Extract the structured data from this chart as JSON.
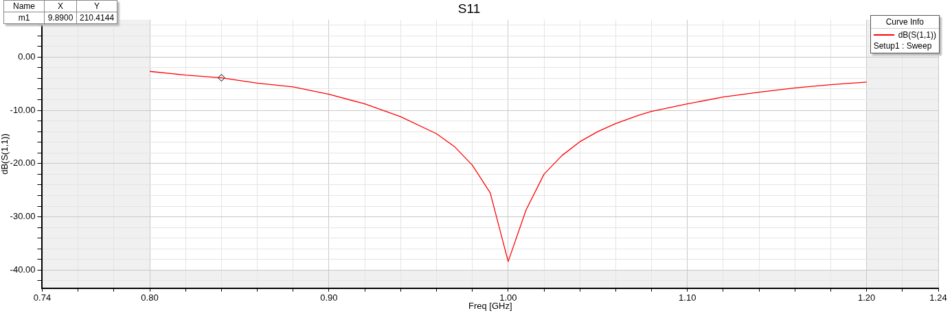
{
  "chart_data": {
    "type": "line",
    "title": "S11",
    "xlabel": "Freq [GHz]",
    "ylabel": "dB(S(1,1))",
    "legend_title": "Curve Info",
    "legend": "top right",
    "grid": true,
    "annotations": [
      "Name",
      "X",
      "Y",
      "m1",
      "9.8900",
      "210.4144",
      "Setup1 : Sweep"
    ],
    "xlim": [
      0.74,
      1.24
    ],
    "xticks": [
      0.74,
      {
        "value": 0.76,
        "label": null
      },
      {
        "value": 0.78,
        "label": null
      },
      {
        "value": 0.8,
        "label": "0.80"
      },
      {
        "value": 0.82,
        "label": null
      },
      {
        "value": 0.84,
        "label": null
      },
      {
        "value": 0.86,
        "label": null
      },
      {
        "value": 0.88,
        "label": null
      },
      {
        "value": 0.9,
        "label": "0.90"
      },
      {
        "value": 0.92,
        "label": null
      },
      {
        "value": 0.94,
        "label": null
      },
      {
        "value": 0.96,
        "label": null
      },
      {
        "value": 0.98,
        "label": null
      },
      {
        "value": 1.0,
        "label": "1.00"
      },
      {
        "value": 1.02,
        "label": null
      },
      {
        "value": 1.04,
        "label": null
      },
      {
        "value": 1.06,
        "label": null
      },
      {
        "value": 1.08,
        "label": null
      },
      {
        "value": 1.1,
        "label": "1.10"
      },
      {
        "value": 1.12,
        "label": null
      },
      {
        "value": 1.14,
        "label": null
      },
      {
        "value": 1.16,
        "label": null
      },
      {
        "value": 1.18,
        "label": null
      },
      {
        "value": 1.2,
        "label": "1.20"
      },
      {
        "value": 1.22,
        "label": null
      },
      1.24
    ],
    "ylim": [
      -43.4,
      7
    ],
    "yticks": [
      {
        "value": -42,
        "label": null
      },
      {
        "value": -40,
        "label": "-40.00"
      },
      {
        "value": -38,
        "label": null
      },
      {
        "value": -36,
        "label": null
      },
      {
        "value": -34,
        "label": null
      },
      {
        "value": -32,
        "label": null
      },
      {
        "value": -30,
        "label": "-30.00"
      },
      {
        "value": -28,
        "label": null
      },
      {
        "value": -26,
        "label": null
      },
      {
        "value": -24,
        "label": null
      },
      {
        "value": -22,
        "label": null
      },
      {
        "value": -20,
        "label": "-20.00"
      },
      {
        "value": -18,
        "label": null
      },
      {
        "value": -16,
        "label": null
      },
      {
        "value": -14,
        "label": null
      },
      {
        "value": -12,
        "label": null
      },
      {
        "value": -10,
        "label": "-10.00"
      },
      {
        "value": -8,
        "label": null
      },
      {
        "value": -6,
        "label": null
      },
      {
        "value": -4,
        "label": null
      },
      {
        "value": -2,
        "label": null
      },
      {
        "value": 0,
        "label": "0.00"
      },
      {
        "value": 2,
        "label": null
      },
      {
        "value": 4,
        "label": null
      },
      {
        "value": 6,
        "label": null
      }
    ],
    "bands": [
      {
        "axis": "x",
        "from": 0.74,
        "to": 0.8,
        "color": "#f0f0f0"
      },
      {
        "axis": "x",
        "from": 1.2,
        "to": 1.24,
        "color": "#f0f0f0"
      },
      {
        "axis": "y",
        "from": -43.4,
        "to": -40,
        "color": "#f0f0f0"
      }
    ],
    "series": [
      {
        "name": "dB(S(1,1))",
        "color": "#ff0000",
        "marker": "none",
        "x": [
          0.8,
          0.82,
          0.84,
          0.86,
          0.88,
          0.9,
          0.92,
          0.94,
          0.96,
          0.97,
          0.98,
          0.99,
          1.0,
          1.01,
          1.02,
          1.03,
          1.04,
          1.05,
          1.06,
          1.073,
          1.08,
          1.1,
          1.12,
          1.14,
          1.16,
          1.18,
          1.2
        ],
        "values": [
          -2.7,
          -3.4,
          -3.9,
          -4.9,
          -5.6,
          -7.0,
          -8.8,
          -11.2,
          -14.4,
          -16.8,
          -20.3,
          -25.5,
          -38.4,
          -28.7,
          -22.0,
          -18.5,
          -15.9,
          -14.0,
          -12.5,
          -10.9,
          -10.2,
          -8.8,
          -7.5,
          -6.6,
          -5.8,
          -5.2,
          -4.7
        ]
      },
      {
        "type": "scatter",
        "color": "#000000",
        "marker": "diamond",
        "x": [
          0.84
        ],
        "values": [
          -3.9
        ]
      }
    ]
  }
}
